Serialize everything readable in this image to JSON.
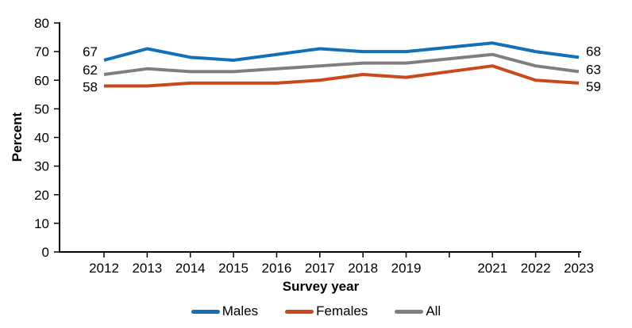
{
  "chart_data": {
    "type": "line",
    "title": "",
    "xlabel": "Survey year",
    "ylabel": "Percent",
    "x": [
      2012,
      2013,
      2014,
      2015,
      2016,
      2017,
      2018,
      2019,
      2021,
      2022,
      2023
    ],
    "x_ticks": [
      2012,
      2013,
      2014,
      2015,
      2016,
      2017,
      2018,
      2019,
      2020,
      2021,
      2022,
      2023
    ],
    "x_tick_labels": [
      "2012",
      "2013",
      "2014",
      "2015",
      "2016",
      "2017",
      "2018",
      "2019",
      "",
      "2021",
      "2022",
      "2023"
    ],
    "ylim": [
      0,
      80
    ],
    "y_ticks": [
      0,
      10,
      20,
      30,
      40,
      50,
      60,
      70,
      80
    ],
    "y_tick_labels": [
      "0",
      "10",
      "20",
      "30",
      "40",
      "50",
      "60",
      "70",
      "80"
    ],
    "grid": false,
    "legend_position": "bottom",
    "axis_color": "#000000",
    "background": "#FFFFFF",
    "series": [
      {
        "name": "Males",
        "color": "#1170B8",
        "values": [
          67,
          71,
          68,
          67,
          69,
          71,
          70,
          70,
          73,
          70,
          68
        ],
        "first_label": "67",
        "last_label": "68"
      },
      {
        "name": "Females",
        "color": "#C9481C",
        "values": [
          58,
          58,
          59,
          59,
          59,
          60,
          62,
          61,
          65,
          60,
          59
        ],
        "first_label": "58",
        "last_label": "59"
      },
      {
        "name": "All",
        "color": "#7F7F7F",
        "values": [
          62,
          64,
          63,
          63,
          64,
          65,
          66,
          66,
          69,
          65,
          63
        ],
        "first_label": "62",
        "last_label": "63"
      }
    ]
  }
}
